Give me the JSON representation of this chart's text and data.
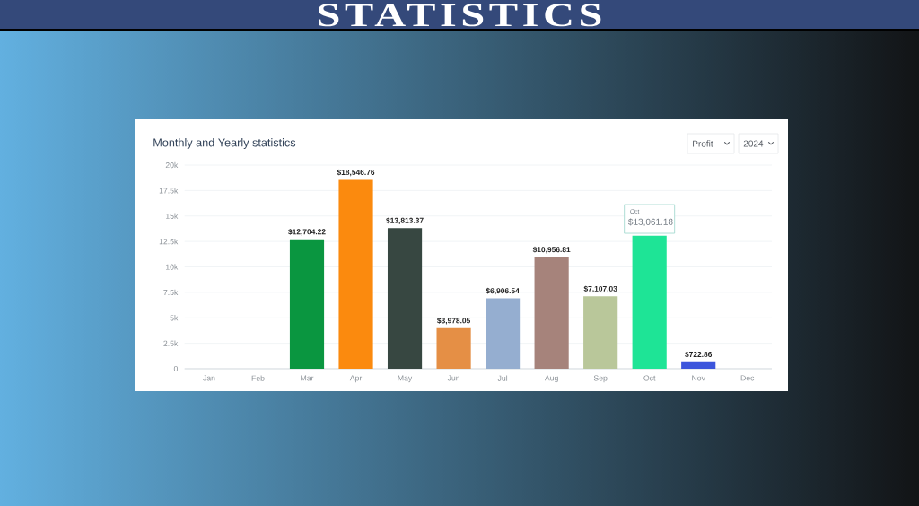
{
  "chart_data": {
    "type": "bar",
    "title": "STATISTICS",
    "subtitle": "Monthly and Yearly statistics",
    "categories": [
      "Jan",
      "Feb",
      "Mar",
      "Apr",
      "May",
      "Jun",
      "Jul",
      "Aug",
      "Sep",
      "Oct",
      "Nov",
      "Dec"
    ],
    "values": [
      null,
      null,
      12704.22,
      18546.76,
      13813.37,
      3978.05,
      6906.54,
      10956.81,
      7107.03,
      13061.18,
      722.86,
      null
    ],
    "colors": [
      null,
      null,
      "#0a9640",
      "#fb8a0e",
      "#374741",
      "#e58f45",
      "#95aed0",
      "#a6837b",
      "#b9c79a",
      "#1ee496",
      "#3c55dc",
      null
    ],
    "value_labels": [
      null,
      null,
      "$12,704.22",
      "$18,546.76",
      "$13,813.37",
      "$3,978.05",
      "$6,906.54",
      "$10,956.81",
      "$7,107.03",
      null,
      "$722.86",
      null
    ],
    "ylim": [
      0,
      20000
    ],
    "yticks": [
      0,
      {
        "value": 2500,
        "label": "2.5k"
      },
      {
        "value": 5000,
        "label": "5k"
      },
      {
        "value": 7500,
        "label": "7.5k"
      },
      {
        "value": 10000,
        "label": "10k"
      },
      {
        "value": 12500,
        "label": "12.5k"
      },
      {
        "value": 15000,
        "label": "15k"
      },
      {
        "value": 17500,
        "label": "17.5k"
      },
      {
        "value": 20000,
        "label": "20k"
      }
    ],
    "grid": "y",
    "annotations": [
      "Profit",
      "2024",
      "Oct",
      {
        "text": "$13,061.18",
        "x": "Oct",
        "y": 13061.18
      }
    ]
  }
}
